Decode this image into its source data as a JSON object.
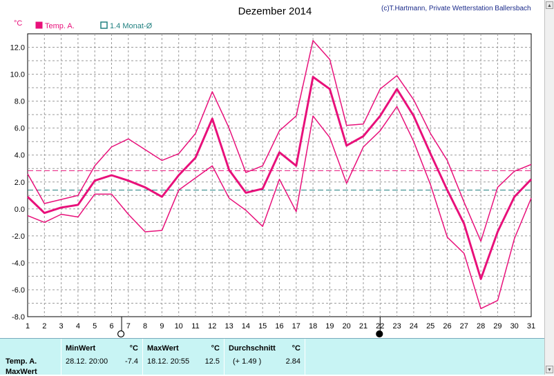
{
  "chart_data": {
    "type": "line",
    "title": "Dezember 2014",
    "copyright": "(c)T.Hartmann, Private Wetterstation Ballersbach",
    "ylabel": "°C",
    "xlim": [
      1,
      31
    ],
    "ylim": [
      -8,
      13
    ],
    "yticks": [
      -8,
      -6,
      -4,
      -2,
      0,
      2,
      4,
      6,
      8,
      10,
      12
    ],
    "ytick_labels": [
      "-8.0",
      "-6.0",
      "-4.0",
      "-2.0",
      "0.0",
      "2.0",
      "4.0",
      "6.0",
      "8.0",
      "10.0",
      "12.0"
    ],
    "x": [
      1,
      2,
      3,
      4,
      5,
      6,
      7,
      8,
      9,
      10,
      11,
      12,
      13,
      14,
      15,
      16,
      17,
      18,
      19,
      20,
      21,
      22,
      23,
      24,
      25,
      26,
      27,
      28,
      29,
      30,
      31
    ],
    "xtick_labels": [
      "1",
      "2",
      "3",
      "4",
      "5",
      "6",
      "7",
      "8",
      "9",
      "10",
      "11",
      "12",
      "13",
      "14",
      "15",
      "16",
      "17",
      "18",
      "19",
      "20",
      "21",
      "22",
      "23",
      "24",
      "25",
      "26",
      "27",
      "28",
      "29",
      "30",
      "31"
    ],
    "grid": true,
    "legend": [
      {
        "label": "Temp. A.",
        "color": "#e8107a",
        "style": "filled"
      },
      {
        "label": "1.4 Monat-Ø",
        "color": "#208080",
        "style": "open"
      }
    ],
    "series": [
      {
        "role": "max",
        "color": "#e8107a",
        "width": 1.5,
        "values": [
          2.6,
          0.4,
          0.7,
          1.0,
          3.2,
          4.6,
          5.2,
          4.4,
          3.6,
          4.1,
          5.6,
          8.7,
          6.0,
          2.7,
          3.2,
          5.8,
          6.9,
          12.5,
          11.1,
          6.2,
          6.3,
          8.9,
          9.9,
          8.1,
          5.6,
          3.6,
          0.5,
          -2.4,
          1.6,
          2.8,
          3.3
        ]
      },
      {
        "role": "mean",
        "color": "#e8107a",
        "width": 3,
        "values": [
          0.9,
          -0.3,
          0.1,
          0.3,
          2.1,
          2.5,
          2.1,
          1.6,
          0.9,
          2.5,
          3.8,
          6.7,
          2.9,
          1.2,
          1.5,
          4.2,
          3.2,
          9.8,
          8.9,
          4.7,
          5.4,
          6.9,
          8.9,
          6.9,
          4.1,
          1.4,
          -1.1,
          -5.2,
          -1.7,
          0.9,
          2.2
        ]
      },
      {
        "role": "min",
        "color": "#e8107a",
        "width": 1.5,
        "values": [
          -0.5,
          -1.0,
          -0.4,
          -0.6,
          1.1,
          1.1,
          -0.4,
          -1.7,
          -1.6,
          1.4,
          2.3,
          3.2,
          0.8,
          -0.1,
          -1.3,
          2.2,
          -0.2,
          6.9,
          5.3,
          1.9,
          4.6,
          5.8,
          7.6,
          5.0,
          1.8,
          -2.1,
          -3.3,
          -7.4,
          -6.8,
          -2.2,
          0.8
        ]
      }
    ],
    "reference_lines": [
      {
        "value": 2.84,
        "color": "#e8107a",
        "dash": true
      },
      {
        "value": 1.4,
        "color": "#208080",
        "dash": true
      }
    ],
    "moon_markers": [
      {
        "day": 6.6,
        "phase": "full"
      },
      {
        "day": 22,
        "phase": "new"
      }
    ]
  },
  "stats": {
    "row_labels": [
      "Temp. A.",
      "MaxWert"
    ],
    "min": {
      "header": "MinWert",
      "unit": "°C",
      "datetime": "28.12.  20:00",
      "value": "-7.4"
    },
    "max": {
      "header": "MaxWert",
      "unit": "°C",
      "datetime": "18.12.  20:55",
      "value": "12.5"
    },
    "avg": {
      "header": "Durchschnitt",
      "unit": "°C",
      "diff": "(+ 1.49 )",
      "value": "2.84"
    }
  }
}
